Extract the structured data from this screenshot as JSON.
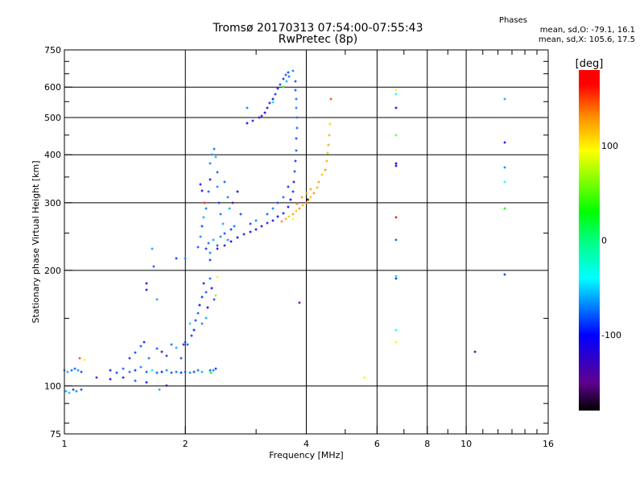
{
  "chart_data": {
    "type": "scatter",
    "title": "Tromsø 20170313 07:54:00-07:55:43",
    "subtitle": "RwPretec (8p)",
    "xlabel": "Frequency [MHz]",
    "ylabel": "Stationary phase Virtual Height [km]",
    "xscale": "log",
    "yscale": "log",
    "xlim": [
      1,
      16
    ],
    "ylim": [
      75,
      750
    ],
    "xticks": [
      1,
      2,
      4,
      6,
      8,
      10,
      16
    ],
    "yticks": [
      75,
      100,
      200,
      300,
      400,
      500,
      600,
      750
    ],
    "xgrid": [
      2,
      4,
      6,
      8,
      10
    ],
    "ygrid": [
      100,
      200,
      300,
      400,
      500,
      600
    ],
    "stats": {
      "heading": "Phases",
      "o_line": "mean, sd,O: -79.1, 16.1",
      "x_line": "mean, sd,X: 105.6, 17.5"
    },
    "colorbar": {
      "label": "[deg]",
      "range": [
        -180,
        180
      ],
      "ticks": [
        100,
        0,
        -100
      ],
      "stops": [
        [
          -180,
          "#000000"
        ],
        [
          -150,
          "#600090"
        ],
        [
          -100,
          "#0000ff"
        ],
        [
          -40,
          "#00ffff"
        ],
        [
          0,
          "#00ff80"
        ],
        [
          30,
          "#00ff00"
        ],
        [
          95,
          "#ffff00"
        ],
        [
          130,
          "#ff9000"
        ],
        [
          165,
          "#ff0000"
        ],
        [
          180,
          "#ff0000"
        ]
      ]
    },
    "points_format": [
      "frequency_MHz",
      "height_km",
      "phase_deg"
    ],
    "points": [
      [
        1.0,
        110,
        -70
      ],
      [
        1.02,
        109,
        -60
      ],
      [
        1.04,
        110,
        -75
      ],
      [
        1.06,
        111,
        -80
      ],
      [
        1.08,
        110,
        -65
      ],
      [
        1.1,
        109,
        -85
      ],
      [
        1.01,
        97,
        -60
      ],
      [
        1.03,
        96,
        -55
      ],
      [
        1.05,
        98,
        -90
      ],
      [
        1.07,
        97,
        -70
      ],
      [
        1.1,
        98,
        -85
      ],
      [
        1.09,
        118,
        150
      ],
      [
        1.12,
        117,
        90
      ],
      [
        1.3,
        110,
        -95
      ],
      [
        1.35,
        108,
        -85
      ],
      [
        1.4,
        111,
        -80
      ],
      [
        1.45,
        109,
        -75
      ],
      [
        1.5,
        110,
        -90
      ],
      [
        1.55,
        112,
        -70
      ],
      [
        1.6,
        109,
        -85
      ],
      [
        1.65,
        110,
        -60
      ],
      [
        1.7,
        108,
        -80
      ],
      [
        1.75,
        109,
        -95
      ],
      [
        1.8,
        110,
        -70
      ],
      [
        1.85,
        108,
        -85
      ],
      [
        1.9,
        109,
        -75
      ],
      [
        1.95,
        108,
        -90
      ],
      [
        2.0,
        109,
        -80
      ],
      [
        2.05,
        108,
        -70
      ],
      [
        2.1,
        109,
        -85
      ],
      [
        2.15,
        110,
        -75
      ],
      [
        2.2,
        109,
        -60
      ],
      [
        2.3,
        110,
        -80
      ],
      [
        2.35,
        110,
        -70
      ],
      [
        2.38,
        111,
        -90
      ],
      [
        2.32,
        108,
        30
      ],
      [
        1.3,
        104,
        -110
      ],
      [
        1.4,
        105,
        -95
      ],
      [
        1.5,
        103,
        -80
      ],
      [
        1.6,
        102,
        -110
      ],
      [
        1.72,
        98,
        -60
      ],
      [
        1.2,
        105,
        -150
      ],
      [
        1.45,
        118,
        -90
      ],
      [
        1.5,
        122,
        -85
      ],
      [
        1.55,
        127,
        -80
      ],
      [
        1.58,
        130,
        -95
      ],
      [
        1.62,
        118,
        -75
      ],
      [
        1.7,
        125,
        -80
      ],
      [
        1.75,
        123,
        -130
      ],
      [
        1.8,
        120,
        -90
      ],
      [
        1.85,
        128,
        -75
      ],
      [
        1.9,
        126,
        -60
      ],
      [
        1.95,
        118,
        -85
      ],
      [
        2.0,
        130,
        -85
      ],
      [
        2.03,
        128,
        -80
      ],
      [
        2.07,
        135,
        -90
      ],
      [
        2.1,
        140,
        -95
      ],
      [
        2.12,
        148,
        -85
      ],
      [
        2.15,
        155,
        -80
      ],
      [
        2.17,
        162,
        -100
      ],
      [
        2.2,
        170,
        -90
      ],
      [
        2.22,
        185,
        -95
      ],
      [
        2.25,
        175,
        -80
      ],
      [
        2.27,
        160,
        -100
      ],
      [
        2.3,
        190,
        -75
      ],
      [
        2.33,
        180,
        -110
      ],
      [
        2.36,
        168,
        -85
      ],
      [
        2.38,
        172,
        60
      ],
      [
        2.2,
        145,
        -70
      ],
      [
        2.25,
        150,
        -60
      ],
      [
        2.05,
        145,
        -50
      ],
      [
        2.4,
        192,
        90
      ],
      [
        2.3,
        213,
        -90
      ],
      [
        1.98,
        128,
        -150
      ],
      [
        1.6,
        185,
        -110
      ],
      [
        1.6,
        178,
        -120
      ],
      [
        1.7,
        168,
        -60
      ],
      [
        1.67,
        205,
        -80
      ],
      [
        1.65,
        228,
        -60
      ],
      [
        1.9,
        215,
        -90
      ],
      [
        2.0,
        215,
        -70
      ],
      [
        1.65,
        110,
        -40
      ],
      [
        1.8,
        100,
        -130
      ],
      [
        2.15,
        230,
        -80
      ],
      [
        2.18,
        245,
        -70
      ],
      [
        2.2,
        260,
        -85
      ],
      [
        2.22,
        275,
        -60
      ],
      [
        2.25,
        290,
        -75
      ],
      [
        2.28,
        320,
        -80
      ],
      [
        2.3,
        345,
        -95
      ],
      [
        2.3,
        380,
        -70
      ],
      [
        2.33,
        400,
        -65
      ],
      [
        2.36,
        415,
        -75
      ],
      [
        2.38,
        395,
        -60
      ],
      [
        2.4,
        360,
        -80
      ],
      [
        2.4,
        330,
        -70
      ],
      [
        2.42,
        300,
        -90
      ],
      [
        2.45,
        280,
        -75
      ],
      [
        2.48,
        265,
        -60
      ],
      [
        2.5,
        250,
        -85
      ],
      [
        2.45,
        245,
        -70
      ],
      [
        2.35,
        240,
        -60
      ],
      [
        2.28,
        235,
        -75
      ],
      [
        2.25,
        228,
        -90
      ],
      [
        2.3,
        222,
        -70
      ],
      [
        2.4,
        232,
        -80
      ],
      [
        2.55,
        240,
        -65
      ],
      [
        2.6,
        255,
        -90
      ],
      [
        2.65,
        260,
        -75
      ],
      [
        2.58,
        290,
        -60
      ],
      [
        2.62,
        300,
        -130
      ],
      [
        2.7,
        320,
        -100
      ],
      [
        2.75,
        280,
        -85
      ],
      [
        2.55,
        310,
        -70
      ],
      [
        2.5,
        340,
        -80
      ],
      [
        2.2,
        322,
        -110
      ],
      [
        2.18,
        335,
        -95
      ],
      [
        2.23,
        300,
        160
      ],
      [
        2.85,
        530,
        -70
      ],
      [
        2.4,
        228,
        -110
      ],
      [
        2.5,
        232,
        -120
      ],
      [
        2.6,
        238,
        -100
      ],
      [
        2.7,
        243,
        -105
      ],
      [
        2.8,
        248,
        -95
      ],
      [
        2.9,
        252,
        -110
      ],
      [
        3.0,
        256,
        -100
      ],
      [
        3.1,
        261,
        -105
      ],
      [
        3.2,
        266,
        -95
      ],
      [
        3.3,
        270,
        -110
      ],
      [
        3.4,
        276,
        -100
      ],
      [
        3.5,
        282,
        -95
      ],
      [
        3.6,
        292,
        -105
      ],
      [
        3.65,
        305,
        -100
      ],
      [
        3.7,
        320,
        -90
      ],
      [
        3.72,
        340,
        -95
      ],
      [
        3.74,
        362,
        -85
      ],
      [
        3.76,
        385,
        -90
      ],
      [
        3.77,
        410,
        -80
      ],
      [
        3.78,
        440,
        -85
      ],
      [
        3.79,
        470,
        -75
      ],
      [
        3.8,
        500,
        -80
      ],
      [
        3.78,
        530,
        -70
      ],
      [
        3.77,
        560,
        -75
      ],
      [
        3.76,
        590,
        -80
      ],
      [
        3.75,
        620,
        -85
      ],
      [
        3.2,
        280,
        -80
      ],
      [
        3.3,
        290,
        -70
      ],
      [
        3.4,
        300,
        -85
      ],
      [
        3.5,
        310,
        -75
      ],
      [
        3.6,
        330,
        -90
      ],
      [
        3.0,
        270,
        -70
      ],
      [
        2.9,
        265,
        -85
      ],
      [
        2.85,
        484,
        -100
      ],
      [
        2.95,
        490,
        -95
      ],
      [
        3.05,
        500,
        -105
      ],
      [
        3.15,
        515,
        -100
      ],
      [
        3.2,
        530,
        -110
      ],
      [
        3.25,
        545,
        -95
      ],
      [
        3.3,
        560,
        -100
      ],
      [
        3.35,
        575,
        -90
      ],
      [
        3.4,
        595,
        -95
      ],
      [
        3.45,
        610,
        -85
      ],
      [
        3.5,
        630,
        -90
      ],
      [
        3.55,
        645,
        -80
      ],
      [
        3.6,
        655,
        -85
      ],
      [
        3.62,
        640,
        -75
      ],
      [
        3.58,
        620,
        -60
      ],
      [
        3.5,
        600,
        30
      ],
      [
        3.3,
        548,
        -50
      ],
      [
        3.1,
        505,
        -150
      ],
      [
        3.7,
        660,
        -70
      ],
      [
        3.48,
        268,
        130
      ],
      [
        3.55,
        272,
        120
      ],
      [
        3.62,
        276,
        110
      ],
      [
        3.7,
        280,
        125
      ],
      [
        3.78,
        285,
        115
      ],
      [
        3.85,
        290,
        130
      ],
      [
        3.92,
        295,
        120
      ],
      [
        4.0,
        300,
        140
      ],
      [
        4.05,
        305,
        125
      ],
      [
        4.1,
        310,
        115
      ],
      [
        4.18,
        318,
        130
      ],
      [
        4.25,
        328,
        120
      ],
      [
        4.3,
        340,
        125
      ],
      [
        4.38,
        355,
        115
      ],
      [
        4.45,
        365,
        130
      ],
      [
        4.5,
        385,
        120
      ],
      [
        4.53,
        405,
        115
      ],
      [
        4.55,
        425,
        125
      ],
      [
        4.57,
        450,
        120
      ],
      [
        4.59,
        480,
        110
      ],
      [
        3.9,
        310,
        130
      ],
      [
        4.0,
        318,
        120
      ],
      [
        4.1,
        325,
        125
      ],
      [
        3.8,
        298,
        140
      ],
      [
        3.7,
        272,
        95
      ],
      [
        4.6,
        560,
        150
      ],
      [
        4.02,
        305,
        -170
      ],
      [
        6.7,
        590,
        90
      ],
      [
        6.7,
        575,
        -40
      ],
      [
        6.7,
        530,
        -100
      ],
      [
        6.7,
        450,
        60
      ],
      [
        6.7,
        380,
        -100
      ],
      [
        6.7,
        375,
        -110
      ],
      [
        6.7,
        275,
        170
      ],
      [
        6.7,
        240,
        -80
      ],
      [
        6.7,
        193,
        -50
      ],
      [
        6.7,
        190,
        -90
      ],
      [
        6.7,
        140,
        -40
      ],
      [
        6.7,
        130,
        90
      ],
      [
        12.5,
        560,
        -60
      ],
      [
        12.5,
        430,
        -100
      ],
      [
        12.5,
        370,
        -70
      ],
      [
        12.5,
        340,
        -40
      ],
      [
        12.5,
        290,
        30
      ],
      [
        12.5,
        195,
        -90
      ],
      [
        10.5,
        123,
        -110
      ],
      [
        5.6,
        105,
        100
      ],
      [
        3.85,
        165,
        -150
      ]
    ]
  }
}
